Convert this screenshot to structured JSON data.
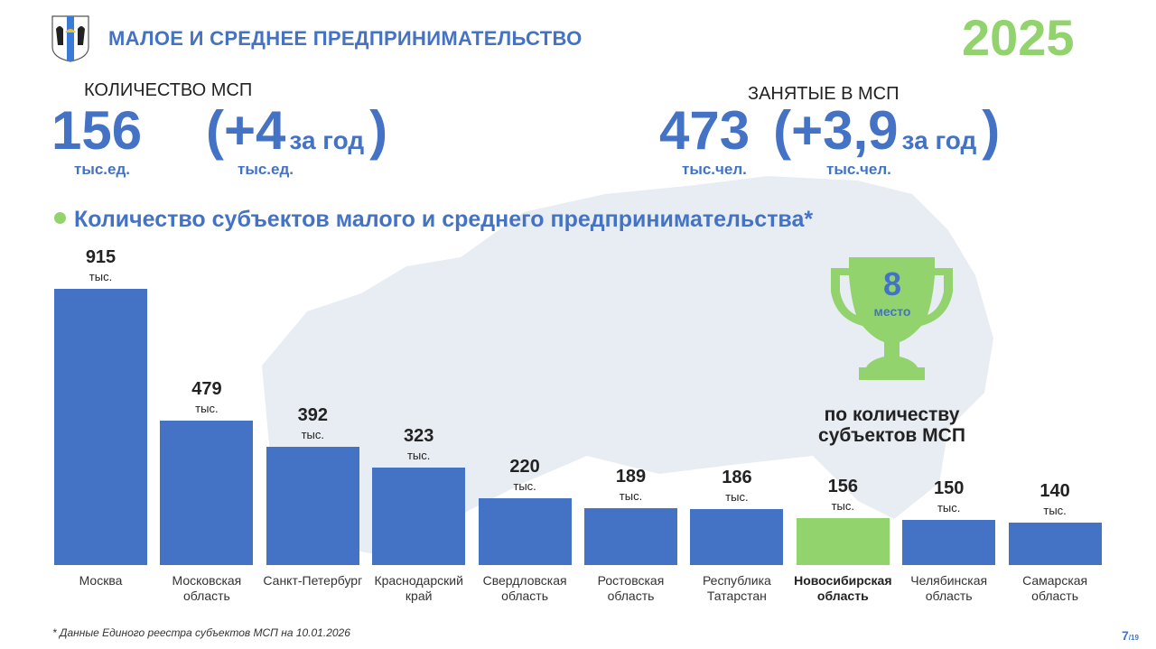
{
  "header": {
    "title": "МАЛОЕ И СРЕДНЕЕ ПРЕДПРИНИМАТЕЛЬСТВО",
    "year": "2025"
  },
  "msp_count": {
    "label": "КОЛИЧЕСТВО МСП",
    "value": "156",
    "unit": "тыс.ед.",
    "change_open": "(+4",
    "change_suffix": "за год",
    "change_close": ")",
    "change_unit": "тыс.ед."
  },
  "employed": {
    "label": "ЗАНЯТЫЕ В МСП",
    "value": "473",
    "unit": "тыс.чел.",
    "change_open": "(+3,9",
    "change_suffix": "за год",
    "change_close": ")",
    "change_unit": "тыс.чел."
  },
  "rank": {
    "place": "8",
    "place_label": "место",
    "caption": "по количеству субъектов МСП"
  },
  "footnote": "* Данные Единого реестра субъектов МСП на 10.01.2026",
  "page": {
    "current": "7",
    "total": "/19"
  },
  "colors": {
    "bar": "#4472c4",
    "highlight": "#92d36e"
  },
  "chart_data": {
    "type": "bar",
    "title": "Количество субъектов малого и среднего предпринимательства*",
    "unit_label": "тыс.",
    "categories": [
      "Москва",
      "Московская область",
      "Санкт-Петербург",
      "Краснодарский край",
      "Свердловская область",
      "Ростовская область",
      "Республика Татарстан",
      "Новосибирская область",
      "Челябинская область",
      "Самарская область"
    ],
    "values": [
      915,
      479,
      392,
      323,
      220,
      189,
      186,
      156,
      150,
      140
    ],
    "highlight_index": 7
  }
}
